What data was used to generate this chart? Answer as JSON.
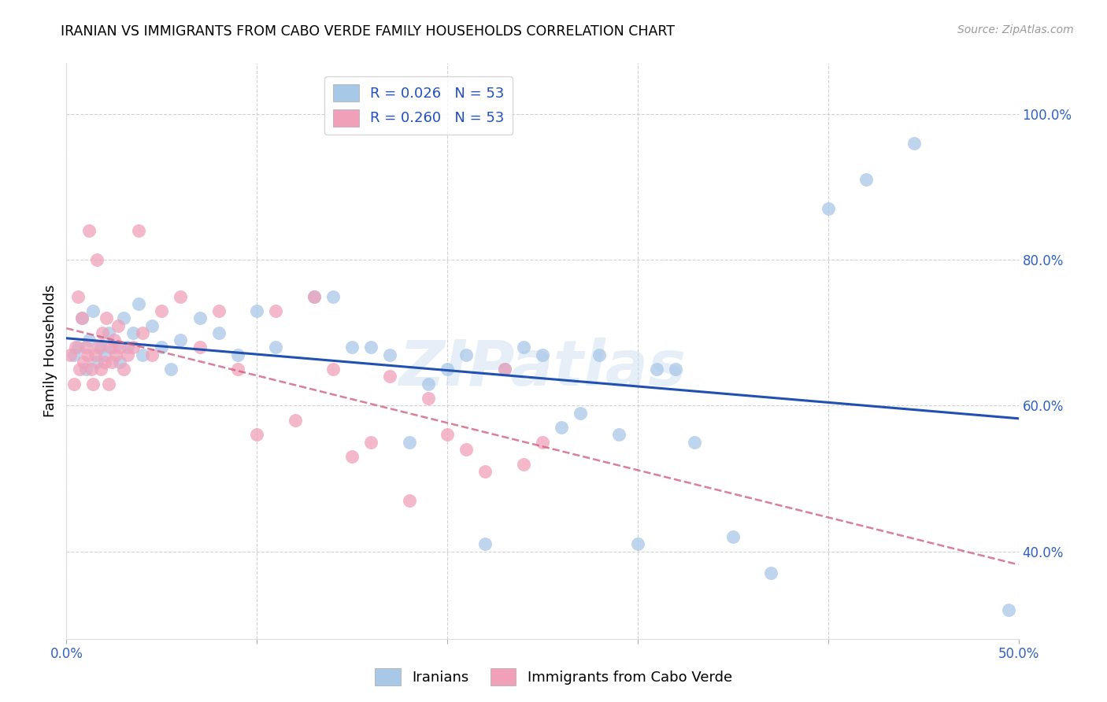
{
  "title": "IRANIAN VS IMMIGRANTS FROM CABO VERDE FAMILY HOUSEHOLDS CORRELATION CHART",
  "source": "Source: ZipAtlas.com",
  "ylabel": "Family Households",
  "yticks": [
    40.0,
    60.0,
    80.0,
    100.0
  ],
  "ytick_labels": [
    "40.0%",
    "60.0%",
    "80.0%",
    "100.0%"
  ],
  "xrange": [
    0.0,
    50.0
  ],
  "yrange": [
    28.0,
    107.0
  ],
  "iranians_color": "#a8c8e8",
  "cabo_verde_color": "#f0a0b8",
  "trendline_iranian_color": "#2050b0",
  "trendline_cabo_color": "#d06080",
  "watermark": "ZIPatlas",
  "iranians_x": [
    0.4,
    0.6,
    0.8,
    1.0,
    1.2,
    1.4,
    1.6,
    1.8,
    2.0,
    2.2,
    2.5,
    2.8,
    3.0,
    3.2,
    3.5,
    3.8,
    4.0,
    4.5,
    5.0,
    5.5,
    6.0,
    7.0,
    8.0,
    9.0,
    10.0,
    11.0,
    13.0,
    15.0,
    17.0,
    20.0,
    22.0,
    25.0,
    26.0,
    28.0,
    30.0,
    33.0,
    35.0,
    37.0,
    40.0,
    42.0,
    44.5,
    49.5
  ],
  "iranians_y": [
    67.0,
    68.0,
    72.0,
    65.0,
    69.0,
    73.0,
    66.0,
    68.0,
    67.0,
    70.0,
    68.0,
    66.0,
    72.0,
    68.0,
    70.0,
    74.0,
    67.0,
    71.0,
    68.0,
    65.0,
    69.0,
    72.0,
    70.0,
    67.0,
    73.0,
    68.0,
    75.0,
    68.0,
    67.0,
    65.0,
    41.0,
    67.0,
    57.0,
    67.0,
    41.0,
    55.0,
    42.0,
    37.0,
    87.0,
    91.0,
    96.0,
    32.0
  ],
  "iranians_x2": [
    14.0,
    16.0,
    18.0,
    19.0,
    21.0,
    23.0,
    24.0,
    27.0,
    29.0,
    31.0,
    32.0
  ],
  "iranians_y2": [
    75.0,
    68.0,
    55.0,
    63.0,
    67.0,
    65.0,
    68.0,
    59.0,
    56.0,
    65.0,
    65.0
  ],
  "cabo_x": [
    0.2,
    0.4,
    0.5,
    0.6,
    0.7,
    0.8,
    0.9,
    1.0,
    1.1,
    1.2,
    1.3,
    1.4,
    1.5,
    1.6,
    1.7,
    1.8,
    1.9,
    2.0,
    2.1,
    2.2,
    2.3,
    2.4,
    2.5,
    2.6,
    2.7,
    2.8,
    3.0,
    3.2,
    3.5,
    3.8,
    4.0,
    4.5,
    5.0,
    6.0,
    7.0,
    8.0,
    9.0,
    10.0,
    11.0,
    12.0,
    13.0,
    14.0,
    15.0,
    16.0,
    17.0,
    18.0,
    19.0,
    20.0,
    21.0,
    22.0,
    23.0,
    24.0,
    25.0
  ],
  "cabo_y": [
    67.0,
    63.0,
    68.0,
    75.0,
    65.0,
    72.0,
    66.0,
    68.0,
    67.0,
    84.0,
    65.0,
    63.0,
    67.0,
    80.0,
    68.0,
    65.0,
    70.0,
    66.0,
    72.0,
    63.0,
    68.0,
    66.0,
    69.0,
    67.0,
    71.0,
    68.0,
    65.0,
    67.0,
    68.0,
    84.0,
    70.0,
    67.0,
    73.0,
    75.0,
    68.0,
    73.0,
    65.0,
    56.0,
    73.0,
    58.0,
    75.0,
    65.0,
    53.0,
    55.0,
    64.0,
    47.0,
    61.0,
    56.0,
    54.0,
    51.0,
    65.0,
    52.0,
    55.0
  ],
  "legend1_label": "R = 0.026   N = 53",
  "legend2_label": "R = 0.260   N = 53",
  "bottom_legend1": "Iranians",
  "bottom_legend2": "Immigrants from Cabo Verde"
}
